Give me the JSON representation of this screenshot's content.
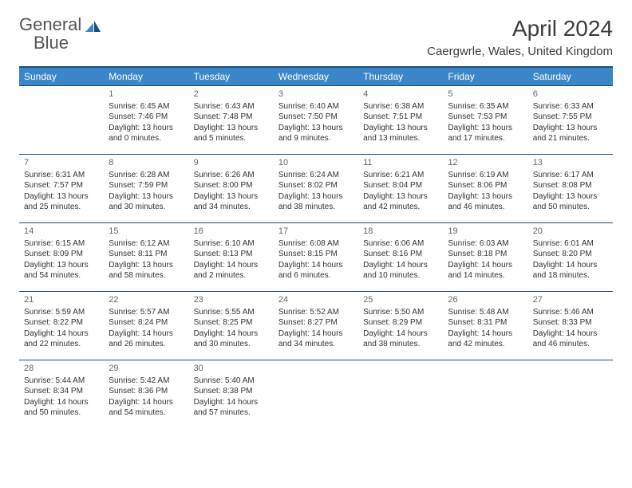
{
  "logo": {
    "word1": "General",
    "word2": "Blue"
  },
  "header": {
    "month_title": "April 2024",
    "location": "Caergwrle, Wales, United Kingdom"
  },
  "colors": {
    "header_bar": "#3a86c8",
    "border": "#1b4f7a",
    "logo_blue": "#3a7cb8"
  },
  "day_names": [
    "Sunday",
    "Monday",
    "Tuesday",
    "Wednesday",
    "Thursday",
    "Friday",
    "Saturday"
  ],
  "weeks": [
    [
      null,
      {
        "n": "1",
        "sr": "Sunrise: 6:45 AM",
        "ss": "Sunset: 7:46 PM",
        "d1": "Daylight: 13 hours",
        "d2": "and 0 minutes."
      },
      {
        "n": "2",
        "sr": "Sunrise: 6:43 AM",
        "ss": "Sunset: 7:48 PM",
        "d1": "Daylight: 13 hours",
        "d2": "and 5 minutes."
      },
      {
        "n": "3",
        "sr": "Sunrise: 6:40 AM",
        "ss": "Sunset: 7:50 PM",
        "d1": "Daylight: 13 hours",
        "d2": "and 9 minutes."
      },
      {
        "n": "4",
        "sr": "Sunrise: 6:38 AM",
        "ss": "Sunset: 7:51 PM",
        "d1": "Daylight: 13 hours",
        "d2": "and 13 minutes."
      },
      {
        "n": "5",
        "sr": "Sunrise: 6:35 AM",
        "ss": "Sunset: 7:53 PM",
        "d1": "Daylight: 13 hours",
        "d2": "and 17 minutes."
      },
      {
        "n": "6",
        "sr": "Sunrise: 6:33 AM",
        "ss": "Sunset: 7:55 PM",
        "d1": "Daylight: 13 hours",
        "d2": "and 21 minutes."
      }
    ],
    [
      {
        "n": "7",
        "sr": "Sunrise: 6:31 AM",
        "ss": "Sunset: 7:57 PM",
        "d1": "Daylight: 13 hours",
        "d2": "and 25 minutes."
      },
      {
        "n": "8",
        "sr": "Sunrise: 6:28 AM",
        "ss": "Sunset: 7:59 PM",
        "d1": "Daylight: 13 hours",
        "d2": "and 30 minutes."
      },
      {
        "n": "9",
        "sr": "Sunrise: 6:26 AM",
        "ss": "Sunset: 8:00 PM",
        "d1": "Daylight: 13 hours",
        "d2": "and 34 minutes."
      },
      {
        "n": "10",
        "sr": "Sunrise: 6:24 AM",
        "ss": "Sunset: 8:02 PM",
        "d1": "Daylight: 13 hours",
        "d2": "and 38 minutes."
      },
      {
        "n": "11",
        "sr": "Sunrise: 6:21 AM",
        "ss": "Sunset: 8:04 PM",
        "d1": "Daylight: 13 hours",
        "d2": "and 42 minutes."
      },
      {
        "n": "12",
        "sr": "Sunrise: 6:19 AM",
        "ss": "Sunset: 8:06 PM",
        "d1": "Daylight: 13 hours",
        "d2": "and 46 minutes."
      },
      {
        "n": "13",
        "sr": "Sunrise: 6:17 AM",
        "ss": "Sunset: 8:08 PM",
        "d1": "Daylight: 13 hours",
        "d2": "and 50 minutes."
      }
    ],
    [
      {
        "n": "14",
        "sr": "Sunrise: 6:15 AM",
        "ss": "Sunset: 8:09 PM",
        "d1": "Daylight: 13 hours",
        "d2": "and 54 minutes."
      },
      {
        "n": "15",
        "sr": "Sunrise: 6:12 AM",
        "ss": "Sunset: 8:11 PM",
        "d1": "Daylight: 13 hours",
        "d2": "and 58 minutes."
      },
      {
        "n": "16",
        "sr": "Sunrise: 6:10 AM",
        "ss": "Sunset: 8:13 PM",
        "d1": "Daylight: 14 hours",
        "d2": "and 2 minutes."
      },
      {
        "n": "17",
        "sr": "Sunrise: 6:08 AM",
        "ss": "Sunset: 8:15 PM",
        "d1": "Daylight: 14 hours",
        "d2": "and 6 minutes."
      },
      {
        "n": "18",
        "sr": "Sunrise: 6:06 AM",
        "ss": "Sunset: 8:16 PM",
        "d1": "Daylight: 14 hours",
        "d2": "and 10 minutes."
      },
      {
        "n": "19",
        "sr": "Sunrise: 6:03 AM",
        "ss": "Sunset: 8:18 PM",
        "d1": "Daylight: 14 hours",
        "d2": "and 14 minutes."
      },
      {
        "n": "20",
        "sr": "Sunrise: 6:01 AM",
        "ss": "Sunset: 8:20 PM",
        "d1": "Daylight: 14 hours",
        "d2": "and 18 minutes."
      }
    ],
    [
      {
        "n": "21",
        "sr": "Sunrise: 5:59 AM",
        "ss": "Sunset: 8:22 PM",
        "d1": "Daylight: 14 hours",
        "d2": "and 22 minutes."
      },
      {
        "n": "22",
        "sr": "Sunrise: 5:57 AM",
        "ss": "Sunset: 8:24 PM",
        "d1": "Daylight: 14 hours",
        "d2": "and 26 minutes."
      },
      {
        "n": "23",
        "sr": "Sunrise: 5:55 AM",
        "ss": "Sunset: 8:25 PM",
        "d1": "Daylight: 14 hours",
        "d2": "and 30 minutes."
      },
      {
        "n": "24",
        "sr": "Sunrise: 5:52 AM",
        "ss": "Sunset: 8:27 PM",
        "d1": "Daylight: 14 hours",
        "d2": "and 34 minutes."
      },
      {
        "n": "25",
        "sr": "Sunrise: 5:50 AM",
        "ss": "Sunset: 8:29 PM",
        "d1": "Daylight: 14 hours",
        "d2": "and 38 minutes."
      },
      {
        "n": "26",
        "sr": "Sunrise: 5:48 AM",
        "ss": "Sunset: 8:31 PM",
        "d1": "Daylight: 14 hours",
        "d2": "and 42 minutes."
      },
      {
        "n": "27",
        "sr": "Sunrise: 5:46 AM",
        "ss": "Sunset: 8:33 PM",
        "d1": "Daylight: 14 hours",
        "d2": "and 46 minutes."
      }
    ],
    [
      {
        "n": "28",
        "sr": "Sunrise: 5:44 AM",
        "ss": "Sunset: 8:34 PM",
        "d1": "Daylight: 14 hours",
        "d2": "and 50 minutes."
      },
      {
        "n": "29",
        "sr": "Sunrise: 5:42 AM",
        "ss": "Sunset: 8:36 PM",
        "d1": "Daylight: 14 hours",
        "d2": "and 54 minutes."
      },
      {
        "n": "30",
        "sr": "Sunrise: 5:40 AM",
        "ss": "Sunset: 8:38 PM",
        "d1": "Daylight: 14 hours",
        "d2": "and 57 minutes."
      },
      null,
      null,
      null,
      null
    ]
  ]
}
